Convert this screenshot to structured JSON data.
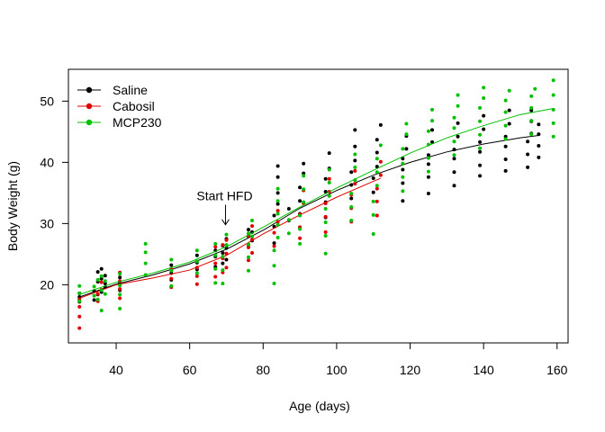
{
  "chart_data": {
    "type": "scatter",
    "xlabel": "Age (days)",
    "ylabel": "Body Weight (g)",
    "xlim": [
      27,
      163
    ],
    "ylim": [
      10.5,
      55.2
    ],
    "x_ticks": [
      40,
      60,
      80,
      100,
      120,
      140,
      160
    ],
    "y_ticks": [
      20,
      30,
      40,
      50
    ],
    "grid": false,
    "legend_position": "top-left",
    "annotation": {
      "text": "Start HFD",
      "x": 70,
      "y": 33.5,
      "arrow_to_y": 29.8
    },
    "series": [
      {
        "name": "Saline",
        "color": "#000000",
        "points": [
          [
            30,
            18.0
          ],
          [
            30,
            17.2
          ],
          [
            30,
            18.6
          ],
          [
            34,
            17.5
          ],
          [
            34,
            19.0
          ],
          [
            35,
            18.4
          ],
          [
            35,
            20.5
          ],
          [
            35,
            22.1
          ],
          [
            36,
            18.8
          ],
          [
            36,
            21.0
          ],
          [
            36,
            22.6
          ],
          [
            37,
            19.6
          ],
          [
            37,
            20.2
          ],
          [
            37,
            21.5
          ],
          [
            41,
            19.1
          ],
          [
            41,
            20.3
          ],
          [
            41,
            21.2
          ],
          [
            55,
            20.8
          ],
          [
            55,
            21.9
          ],
          [
            55,
            23.2
          ],
          [
            62,
            22.5
          ],
          [
            62,
            23.6
          ],
          [
            62,
            24.8
          ],
          [
            67,
            22.9
          ],
          [
            67,
            24.6
          ],
          [
            67,
            25.6
          ],
          [
            69,
            23.5
          ],
          [
            69,
            25.2
          ],
          [
            69,
            26.4
          ],
          [
            70,
            24.1
          ],
          [
            70,
            26.0
          ],
          [
            70,
            27.5
          ],
          [
            76,
            26.5
          ],
          [
            76,
            27.9
          ],
          [
            76,
            29.0
          ],
          [
            77,
            27.2
          ],
          [
            77,
            28.6
          ],
          [
            83,
            26.8
          ],
          [
            83,
            29.5
          ],
          [
            83,
            31.3
          ],
          [
            84,
            33.2
          ],
          [
            84,
            35.0
          ],
          [
            84,
            37.6
          ],
          [
            84,
            39.4
          ],
          [
            87,
            30.5
          ],
          [
            87,
            32.4
          ],
          [
            90,
            29.4
          ],
          [
            90,
            31.6
          ],
          [
            90,
            33.7
          ],
          [
            90,
            35.9
          ],
          [
            91,
            38.2
          ],
          [
            91,
            39.8
          ],
          [
            97,
            31.0
          ],
          [
            97,
            33.5
          ],
          [
            97,
            35.2
          ],
          [
            97,
            37.3
          ],
          [
            98,
            39.0
          ],
          [
            98,
            41.5
          ],
          [
            104,
            34.1
          ],
          [
            104,
            36.3
          ],
          [
            104,
            38.4
          ],
          [
            105,
            40.3
          ],
          [
            105,
            42.6
          ],
          [
            105,
            45.3
          ],
          [
            110,
            35.1
          ],
          [
            110,
            37.4
          ],
          [
            111,
            39.3
          ],
          [
            111,
            41.6
          ],
          [
            111,
            43.7
          ],
          [
            112,
            46.1
          ],
          [
            118,
            33.7
          ],
          [
            118,
            36.6
          ],
          [
            118,
            38.8
          ],
          [
            118,
            40.6
          ],
          [
            119,
            42.2
          ],
          [
            119,
            44.3
          ],
          [
            125,
            34.9
          ],
          [
            125,
            37.6
          ],
          [
            125,
            39.7
          ],
          [
            125,
            41.2
          ],
          [
            126,
            43.3
          ],
          [
            126,
            45.3
          ],
          [
            132,
            36.2
          ],
          [
            132,
            38.4
          ],
          [
            132,
            40.6
          ],
          [
            132,
            42.1
          ],
          [
            133,
            44.2
          ],
          [
            133,
            46.4
          ],
          [
            139,
            37.8
          ],
          [
            139,
            39.5
          ],
          [
            139,
            41.7
          ],
          [
            139,
            43.3
          ],
          [
            140,
            45.4
          ],
          [
            140,
            47.6
          ],
          [
            146,
            38.6
          ],
          [
            146,
            40.5
          ],
          [
            146,
            42.6
          ],
          [
            146,
            44.2
          ],
          [
            147,
            46.3
          ],
          [
            147,
            48.5
          ],
          [
            152,
            39.2
          ],
          [
            152,
            41.3
          ],
          [
            152,
            43.4
          ],
          [
            153,
            44.7
          ],
          [
            153,
            46.7
          ],
          [
            153,
            48.5
          ],
          [
            155,
            40.8
          ],
          [
            155,
            42.7
          ],
          [
            155,
            44.6
          ],
          [
            155,
            46.2
          ]
        ],
        "trend": [
          [
            30,
            18.0
          ],
          [
            40,
            20.1
          ],
          [
            50,
            21.6
          ],
          [
            60,
            23.4
          ],
          [
            70,
            25.8
          ],
          [
            80,
            28.9
          ],
          [
            90,
            32.5
          ],
          [
            100,
            35.4
          ],
          [
            110,
            37.9
          ],
          [
            120,
            40.0
          ],
          [
            130,
            41.7
          ],
          [
            140,
            43.0
          ],
          [
            150,
            44.0
          ],
          [
            155,
            44.4
          ]
        ]
      },
      {
        "name": "Cabosil",
        "color": "#e00000",
        "points": [
          [
            30,
            12.9
          ],
          [
            30,
            14.8
          ],
          [
            30,
            16.4
          ],
          [
            30,
            17.6
          ],
          [
            35,
            17.3
          ],
          [
            35,
            18.5
          ],
          [
            36,
            19.2
          ],
          [
            36,
            20.4
          ],
          [
            41,
            17.8
          ],
          [
            41,
            19.3
          ],
          [
            41,
            20.6
          ],
          [
            41,
            22.0
          ],
          [
            55,
            19.6
          ],
          [
            55,
            21.0
          ],
          [
            55,
            22.5
          ],
          [
            62,
            20.1
          ],
          [
            62,
            21.4
          ],
          [
            62,
            22.8
          ],
          [
            67,
            21.3
          ],
          [
            67,
            23.5
          ],
          [
            67,
            26.2
          ],
          [
            69,
            22.0
          ],
          [
            69,
            24.3
          ],
          [
            69,
            26.5
          ],
          [
            70,
            22.8
          ],
          [
            70,
            25.1
          ],
          [
            70,
            27.3
          ],
          [
            76,
            24.0
          ],
          [
            76,
            26.1
          ],
          [
            76,
            28.0
          ],
          [
            77,
            25.2
          ],
          [
            77,
            27.4
          ],
          [
            77,
            29.6
          ],
          [
            83,
            26.3
          ],
          [
            83,
            28.5
          ],
          [
            84,
            30.3
          ],
          [
            84,
            32.1
          ],
          [
            90,
            27.6
          ],
          [
            90,
            29.4
          ],
          [
            90,
            31.5
          ],
          [
            91,
            33.3
          ],
          [
            91,
            35.4
          ],
          [
            97,
            28.6
          ],
          [
            97,
            31.1
          ],
          [
            97,
            33.3
          ],
          [
            98,
            35.2
          ],
          [
            98,
            37.3
          ],
          [
            104,
            30.3
          ],
          [
            104,
            32.5
          ],
          [
            104,
            34.7
          ],
          [
            105,
            36.5
          ],
          [
            105,
            38.6
          ],
          [
            111,
            31.3
          ],
          [
            111,
            33.6
          ],
          [
            111,
            35.7
          ],
          [
            112,
            37.9
          ],
          [
            112,
            40.1
          ]
        ],
        "trend": [
          [
            30,
            17.8
          ],
          [
            40,
            20.0
          ],
          [
            50,
            21.1
          ],
          [
            60,
            22.4
          ],
          [
            70,
            24.8
          ],
          [
            80,
            28.3
          ],
          [
            90,
            31.4
          ],
          [
            100,
            34.3
          ],
          [
            110,
            36.9
          ],
          [
            112,
            37.4
          ]
        ]
      },
      {
        "name": "MCP230",
        "color": "#00c000",
        "points": [
          [
            30,
            17.3
          ],
          [
            30,
            18.6
          ],
          [
            30,
            19.8
          ],
          [
            34,
            18.2
          ],
          [
            34,
            19.7
          ],
          [
            35,
            20.8
          ],
          [
            35,
            17.6
          ],
          [
            36,
            15.8
          ],
          [
            36,
            19.1
          ],
          [
            36,
            21.4
          ],
          [
            37,
            18.5
          ],
          [
            37,
            20.6
          ],
          [
            41,
            16.1
          ],
          [
            41,
            18.4
          ],
          [
            41,
            19.9
          ],
          [
            41,
            21.8
          ],
          [
            48,
            21.6
          ],
          [
            48,
            23.5
          ],
          [
            48,
            25.3
          ],
          [
            48,
            26.7
          ],
          [
            55,
            19.8
          ],
          [
            55,
            22.3
          ],
          [
            55,
            24.1
          ],
          [
            62,
            21.9
          ],
          [
            62,
            23.8
          ],
          [
            62,
            25.6
          ],
          [
            67,
            20.3
          ],
          [
            67,
            22.6
          ],
          [
            67,
            24.8
          ],
          [
            67,
            26.7
          ],
          [
            69,
            20.2
          ],
          [
            69,
            22.4
          ],
          [
            69,
            24.6
          ],
          [
            70,
            26.5
          ],
          [
            70,
            28.2
          ],
          [
            76,
            22.3
          ],
          [
            76,
            24.5
          ],
          [
            76,
            26.6
          ],
          [
            76,
            28.4
          ],
          [
            77,
            27.9
          ],
          [
            77,
            30.5
          ],
          [
            83,
            20.2
          ],
          [
            83,
            23.1
          ],
          [
            83,
            25.6
          ],
          [
            84,
            27.7
          ],
          [
            84,
            29.8
          ],
          [
            84,
            31.6
          ],
          [
            84,
            33.7
          ],
          [
            84,
            35.7
          ],
          [
            87,
            28.4
          ],
          [
            87,
            30.6
          ],
          [
            90,
            26.7
          ],
          [
            90,
            29.1
          ],
          [
            90,
            31.3
          ],
          [
            91,
            33.5
          ],
          [
            91,
            35.6
          ],
          [
            91,
            37.8
          ],
          [
            97,
            25.1
          ],
          [
            97,
            28.0
          ],
          [
            97,
            30.2
          ],
          [
            97,
            32.4
          ],
          [
            98,
            34.5
          ],
          [
            98,
            36.7
          ],
          [
            98,
            38.8
          ],
          [
            104,
            30.5
          ],
          [
            104,
            32.7
          ],
          [
            104,
            34.9
          ],
          [
            105,
            37.1
          ],
          [
            105,
            39.2
          ],
          [
            105,
            41.3
          ],
          [
            110,
            28.3
          ],
          [
            110,
            31.4
          ],
          [
            110,
            33.6
          ],
          [
            111,
            36.2
          ],
          [
            111,
            38.4
          ],
          [
            111,
            40.6
          ],
          [
            112,
            42.8
          ],
          [
            118,
            35.3
          ],
          [
            118,
            37.6
          ],
          [
            118,
            39.8
          ],
          [
            118,
            42.2
          ],
          [
            119,
            44.6
          ],
          [
            119,
            46.3
          ],
          [
            125,
            38.5
          ],
          [
            125,
            40.7
          ],
          [
            125,
            42.9
          ],
          [
            125,
            45.1
          ],
          [
            126,
            46.8
          ],
          [
            126,
            48.6
          ],
          [
            132,
            41.2
          ],
          [
            132,
            43.4
          ],
          [
            132,
            45.6
          ],
          [
            132,
            47.3
          ],
          [
            133,
            49.2
          ],
          [
            133,
            51.0
          ],
          [
            139,
            42.3
          ],
          [
            139,
            44.5
          ],
          [
            139,
            46.7
          ],
          [
            139,
            48.9
          ],
          [
            140,
            50.5
          ],
          [
            140,
            52.2
          ],
          [
            146,
            43.8
          ],
          [
            146,
            46.0
          ],
          [
            146,
            48.2
          ],
          [
            146,
            50.1
          ],
          [
            147,
            51.7
          ],
          [
            153,
            44.6
          ],
          [
            153,
            46.8
          ],
          [
            153,
            48.9
          ],
          [
            153,
            50.8
          ],
          [
            154,
            52.0
          ],
          [
            159,
            44.2
          ],
          [
            159,
            46.4
          ],
          [
            159,
            48.6
          ],
          [
            159,
            51.0
          ],
          [
            159,
            53.4
          ]
        ],
        "trend": [
          [
            30,
            18.4
          ],
          [
            40,
            20.4
          ],
          [
            50,
            21.9
          ],
          [
            60,
            23.7
          ],
          [
            70,
            26.2
          ],
          [
            80,
            29.4
          ],
          [
            90,
            32.7
          ],
          [
            100,
            35.8
          ],
          [
            110,
            38.7
          ],
          [
            120,
            41.5
          ],
          [
            130,
            44.0
          ],
          [
            140,
            46.0
          ],
          [
            150,
            47.8
          ],
          [
            159,
            48.8
          ]
        ]
      }
    ]
  }
}
